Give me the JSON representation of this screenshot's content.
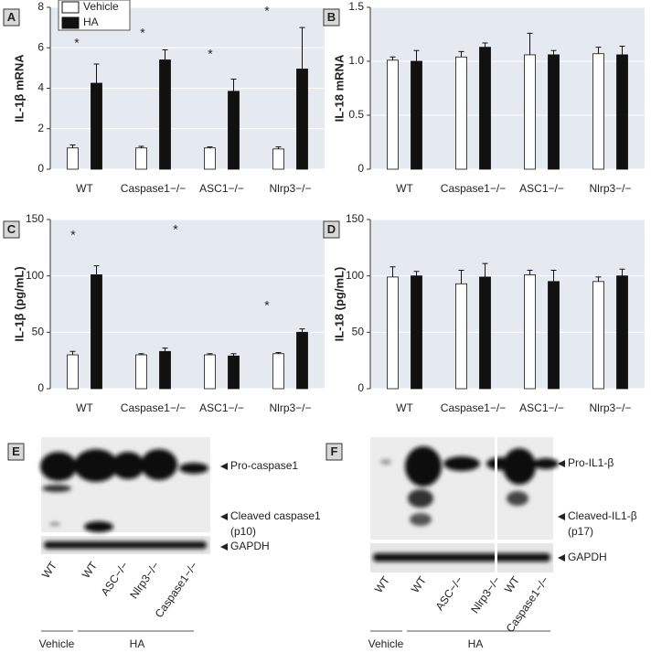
{
  "chart_data": [
    {
      "type": "bar",
      "label": "A",
      "ylabel": "IL-1β mRNA",
      "categories": [
        "WT",
        "Caspase1−/−",
        "ASC1−/−",
        "Nlrp3−/−"
      ],
      "ylim": [
        0,
        8
      ],
      "yticks": [
        0,
        2,
        4,
        6,
        8
      ],
      "grid": true,
      "series": [
        {
          "name": "Vehicle",
          "color": "#ffffff",
          "values": [
            1.05,
            1.05,
            1.05,
            1.0
          ],
          "errors": [
            0.15,
            0.08,
            0.05,
            0.1
          ]
        },
        {
          "name": "HA",
          "color": "#111111",
          "values": [
            4.25,
            5.4,
            3.85,
            4.95
          ],
          "errors": [
            0.95,
            0.5,
            0.6,
            2.05
          ]
        }
      ],
      "annotations": [
        "*",
        "*",
        "*",
        "*"
      ]
    },
    {
      "type": "bar",
      "label": "B",
      "ylabel": "IL-18 mRNA",
      "categories": [
        "WT",
        "Caspase1−/−",
        "ASC1−/−",
        "Nlrp3−/−"
      ],
      "ylim": [
        0,
        1.5
      ],
      "yticks": [
        0,
        0.5,
        {
          "value": 1,
          "label": "1.0"
        },
        1.5
      ],
      "grid": true,
      "series": [
        {
          "color": "#ffffff",
          "values": [
            1.01,
            1.04,
            1.06,
            1.07
          ],
          "errors": [
            0.03,
            0.05,
            0.2,
            0.06
          ]
        },
        {
          "color": "#111111",
          "values": [
            1.0,
            1.13,
            1.06,
            1.06
          ],
          "errors": [
            0.1,
            0.04,
            0.04,
            0.08
          ]
        }
      ]
    },
    {
      "type": "bar",
      "label": "C",
      "ylabel": "IL-1β (pg/mL)",
      "categories": [
        "WT",
        "Caspase1−/−",
        "ASC1−/−",
        "Nlrp3−/−"
      ],
      "ylim": [
        0,
        150
      ],
      "yticks": [
        0,
        50,
        100,
        150
      ],
      "grid": true,
      "series": [
        {
          "color": "#ffffff",
          "values": [
            30,
            30,
            30,
            31
          ],
          "errors": [
            3,
            1,
            1,
            1
          ]
        },
        {
          "color": "#111111",
          "values": [
            101,
            33,
            29,
            50
          ],
          "errors": [
            8,
            3,
            2,
            3
          ]
        }
      ],
      "annotations": [
        "*",
        "*",
        "*"
      ]
    },
    {
      "type": "bar",
      "label": "D",
      "ylabel": "IL-18 (pg/mL)",
      "categories": [
        "WT",
        "Caspase1−/−",
        "ASC1−/−",
        "Nlrp3−/−"
      ],
      "ylim": [
        0,
        150
      ],
      "yticks": [
        0,
        50,
        100,
        150
      ],
      "grid": true,
      "series": [
        {
          "color": "#ffffff",
          "values": [
            99,
            93,
            101,
            95
          ],
          "errors": [
            9,
            12,
            4,
            4
          ]
        },
        {
          "color": "#111111",
          "values": [
            100,
            99,
            95,
            100
          ],
          "errors": [
            4,
            12,
            10,
            6
          ]
        }
      ]
    }
  ],
  "blots": [
    {
      "label": "E",
      "bands": [
        "Pro-caspase1",
        "Cleaved caspase1",
        "(p10)",
        "GAPDH"
      ],
      "lanes": [
        "WT",
        "WT",
        "ASC−/−",
        "Nlrp3−/−",
        "Caspase1−/−"
      ],
      "groups": [
        "Vehicle",
        "HA"
      ]
    },
    {
      "label": "F",
      "bands": [
        "Pro-IL1-β",
        "Cleaved-IL1-β",
        "(p17)",
        "GAPDH"
      ],
      "lanes": [
        "WT",
        "WT",
        "ASC−/−",
        "Nlrp3−/−",
        "WT",
        "Caspase1−/−"
      ],
      "groups": [
        "Vehicle",
        "HA"
      ]
    }
  ]
}
